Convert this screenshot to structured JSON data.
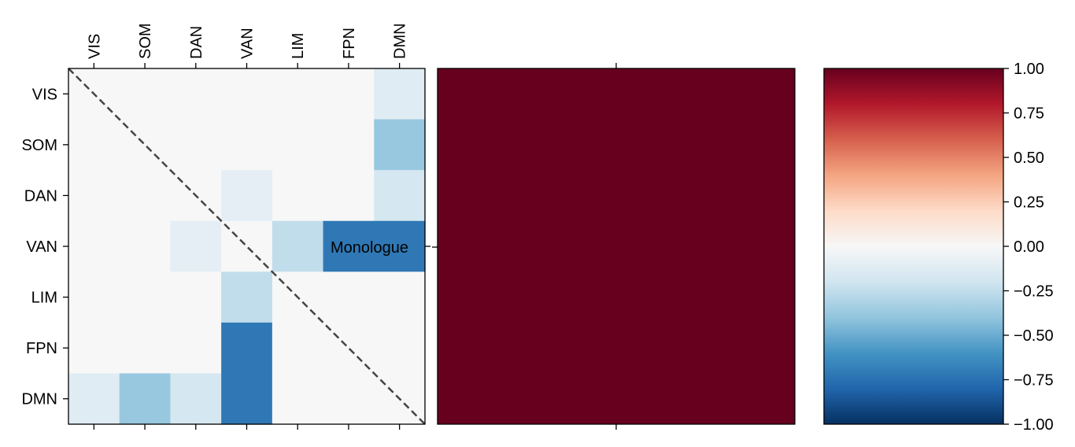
{
  "chart_data": [
    {
      "type": "heatmap",
      "title": "",
      "xlabel": "",
      "ylabel": "",
      "x_tick_position": "top",
      "categories": [
        "VIS",
        "SOM",
        "DAN",
        "VAN",
        "LIM",
        "FPN",
        "DMN"
      ],
      "values": [
        [
          0,
          0,
          0,
          0,
          0,
          0,
          -0.12
        ],
        [
          0,
          0,
          0,
          0,
          0,
          0,
          -0.38
        ],
        [
          0,
          0,
          0,
          -0.1,
          0,
          0,
          -0.18
        ],
        [
          0,
          0,
          -0.1,
          0,
          -0.25,
          -0.72,
          -0.72
        ],
        [
          0,
          0,
          0,
          -0.25,
          0,
          0,
          0
        ],
        [
          0,
          0,
          0,
          -0.72,
          0,
          0,
          0
        ],
        [
          -0.12,
          -0.38,
          -0.18,
          -0.72,
          0,
          0,
          0
        ]
      ],
      "diagonal_line": "dashed",
      "annotation": {
        "text": "Monologue",
        "row": 3
      },
      "vlim": [
        -1.0,
        1.0
      ],
      "colormap": "RdBu_r"
    },
    {
      "type": "heatmap",
      "values": [
        [
          1.0
        ]
      ],
      "vlim": [
        -1.0,
        1.0
      ],
      "colormap": "RdBu_r"
    }
  ],
  "colorbar": {
    "ticks": [
      1.0,
      0.75,
      0.5,
      0.25,
      0.0,
      -0.25,
      -0.5,
      -0.75,
      -1.0
    ],
    "tick_labels": [
      "1.00",
      "0.75",
      "0.50",
      "0.25",
      "0.00",
      "−0.25",
      "−0.50",
      "−0.75",
      "−1.00"
    ],
    "colors": [
      "#053061",
      "#2166ac",
      "#4393c3",
      "#92c5de",
      "#d1e5f0",
      "#f7f7f7",
      "#fddbc7",
      "#f4a582",
      "#d6604d",
      "#b2182b",
      "#67001f"
    ]
  }
}
